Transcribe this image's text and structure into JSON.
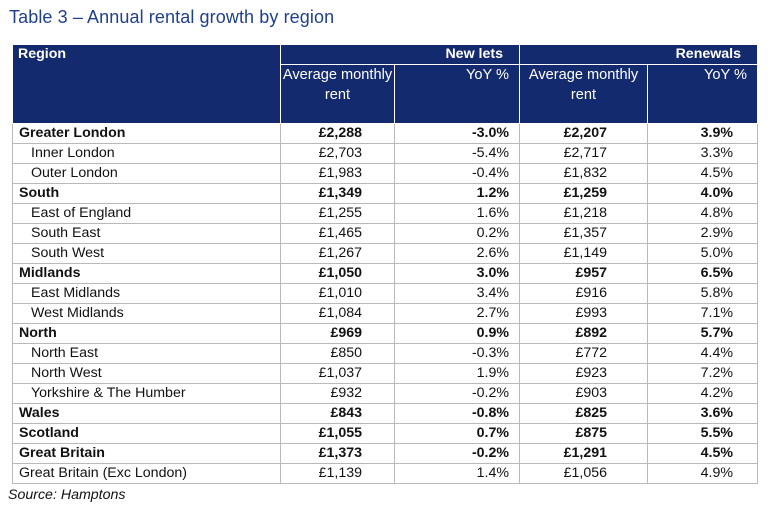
{
  "title": "Table 3 – Annual rental growth by region",
  "header": {
    "region": "Region",
    "new_lets": "New lets",
    "renewals": "Renewals",
    "avg_rent": "Average monthly rent",
    "avg_rent_renewals": "Average monthly rent",
    "yoy": "YoY %"
  },
  "rows": [
    {
      "region": "Greater London",
      "level": "main",
      "new_rent": "£2,288",
      "new_yoy": "-3.0%",
      "ren_rent": "£2,207",
      "ren_yoy": "3.9%"
    },
    {
      "region": "Inner London",
      "level": "sub",
      "new_rent": "£2,703",
      "new_yoy": "-5.4%",
      "ren_rent": "£2,717",
      "ren_yoy": "3.3%"
    },
    {
      "region": "Outer London",
      "level": "sub",
      "new_rent": "£1,983",
      "new_yoy": "-0.4%",
      "ren_rent": "£1,832",
      "ren_yoy": "4.5%"
    },
    {
      "region": "South",
      "level": "main",
      "new_rent": "£1,349",
      "new_yoy": "1.2%",
      "ren_rent": "£1,259",
      "ren_yoy": "4.0%"
    },
    {
      "region": "East of England",
      "level": "sub",
      "new_rent": "£1,255",
      "new_yoy": "1.6%",
      "ren_rent": "£1,218",
      "ren_yoy": "4.8%"
    },
    {
      "region": "South East",
      "level": "sub",
      "new_rent": "£1,465",
      "new_yoy": "0.2%",
      "ren_rent": "£1,357",
      "ren_yoy": "2.9%"
    },
    {
      "region": "South West",
      "level": "sub",
      "new_rent": "£1,267",
      "new_yoy": "2.6%",
      "ren_rent": "£1,149",
      "ren_yoy": "5.0%"
    },
    {
      "region": "Midlands",
      "level": "main",
      "new_rent": "£1,050",
      "new_yoy": "3.0%",
      "ren_rent": "£957",
      "ren_yoy": "6.5%"
    },
    {
      "region": "East Midlands",
      "level": "sub",
      "new_rent": "£1,010",
      "new_yoy": "3.4%",
      "ren_rent": "£916",
      "ren_yoy": "5.8%"
    },
    {
      "region": "West Midlands",
      "level": "sub",
      "new_rent": "£1,084",
      "new_yoy": "2.7%",
      "ren_rent": "£993",
      "ren_yoy": "7.1%"
    },
    {
      "region": "North",
      "level": "main",
      "new_rent": "£969",
      "new_yoy": "0.9%",
      "ren_rent": "£892",
      "ren_yoy": "5.7%"
    },
    {
      "region": "North East",
      "level": "sub",
      "new_rent": "£850",
      "new_yoy": "-0.3%",
      "ren_rent": "£772",
      "ren_yoy": "4.4%"
    },
    {
      "region": "North West",
      "level": "sub",
      "new_rent": "£1,037",
      "new_yoy": "1.9%",
      "ren_rent": "£923",
      "ren_yoy": "7.2%"
    },
    {
      "region": "Yorkshire & The Humber",
      "level": "sub",
      "new_rent": "£932",
      "new_yoy": "-0.2%",
      "ren_rent": "£903",
      "ren_yoy": "4.2%"
    },
    {
      "region": "Wales",
      "level": "main",
      "new_rent": "£843",
      "new_yoy": "-0.8%",
      "ren_rent": "£825",
      "ren_yoy": "3.6%"
    },
    {
      "region": "Scotland",
      "level": "main",
      "new_rent": "£1,055",
      "new_yoy": "0.7%",
      "ren_rent": "£875",
      "ren_yoy": "5.5%"
    },
    {
      "region": "Great Britain",
      "level": "main",
      "new_rent": "£1,373",
      "new_yoy": "-0.2%",
      "ren_rent": "£1,291",
      "ren_yoy": "4.5%"
    },
    {
      "region": "Great Britain (Exc London)",
      "level": "plain",
      "new_rent": "£1,139",
      "new_yoy": "1.4%",
      "ren_rent": "£1,056",
      "ren_yoy": "4.9%"
    }
  ],
  "source": "Source: Hamptons",
  "colors": {
    "title": "#1f3f8f",
    "header_bg": "#142a6e",
    "header_text": "#ffffff",
    "border": "#b9b9b9"
  }
}
